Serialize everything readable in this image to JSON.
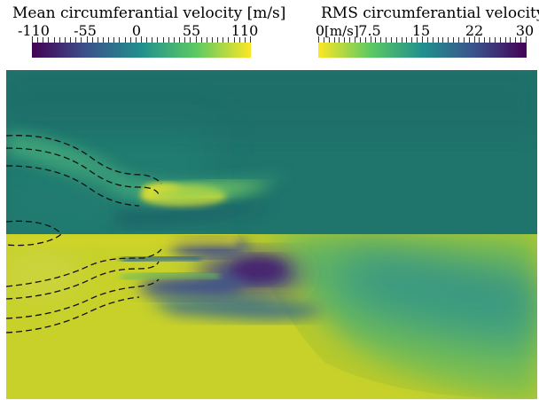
{
  "mean_colorbar": {
    "title": "Mean circumferantial velocity [m/s]",
    "ticks": [
      "-110",
      "-55",
      "0",
      "55",
      "110"
    ],
    "colors": [
      "#440154",
      "#3b528b",
      "#21908d",
      "#5dc963",
      "#fde725"
    ],
    "range": [
      -110,
      110
    ]
  },
  "rms_colorbar": {
    "title": "RMS circumferantial velocity",
    "units": "[m/s]",
    "ticks": [
      "0",
      "7.5",
      "15",
      "22",
      "30"
    ],
    "colors": [
      "#fde725",
      "#5dc963",
      "#21908d",
      "#3b528b",
      "#440154"
    ],
    "range": [
      0,
      30
    ]
  },
  "colors": {
    "mean_background": "#1f7a6e",
    "rms_background": "#b9c82a",
    "outline": "#111111"
  }
}
